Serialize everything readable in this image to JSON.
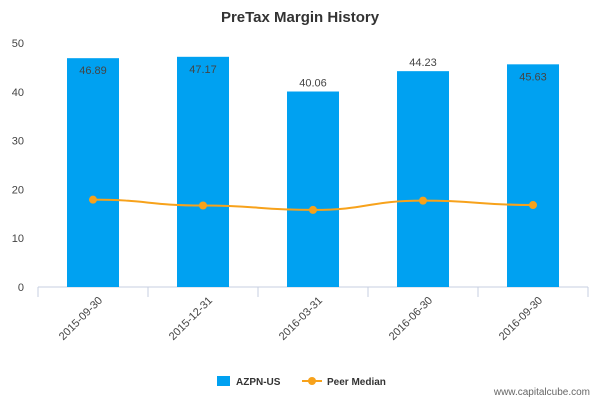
{
  "chart_data": {
    "type": "bar",
    "title": "PreTax Margin History",
    "categories": [
      "2015-09-30",
      "2015-12-31",
      "2016-03-31",
      "2016-06-30",
      "2016-09-30"
    ],
    "series": [
      {
        "name": "AZPN-US",
        "type": "bar",
        "values": [
          46.89,
          47.17,
          40.06,
          44.23,
          45.63
        ],
        "data_labels": [
          "46.89",
          "47.17",
          "40.06",
          "44.23",
          "45.63"
        ],
        "color": "#00a1f1"
      },
      {
        "name": "Peer Median",
        "type": "line",
        "values": [
          17.9,
          16.7,
          15.8,
          17.7,
          16.8
        ],
        "color": "#f7a21b"
      }
    ],
    "ylim": [
      0,
      50
    ],
    "yticks": [
      "0",
      "10",
      "20",
      "30",
      "40",
      "50"
    ],
    "grid": false,
    "legend": "bottom-center"
  },
  "watermark": "www.capitalcube.com"
}
